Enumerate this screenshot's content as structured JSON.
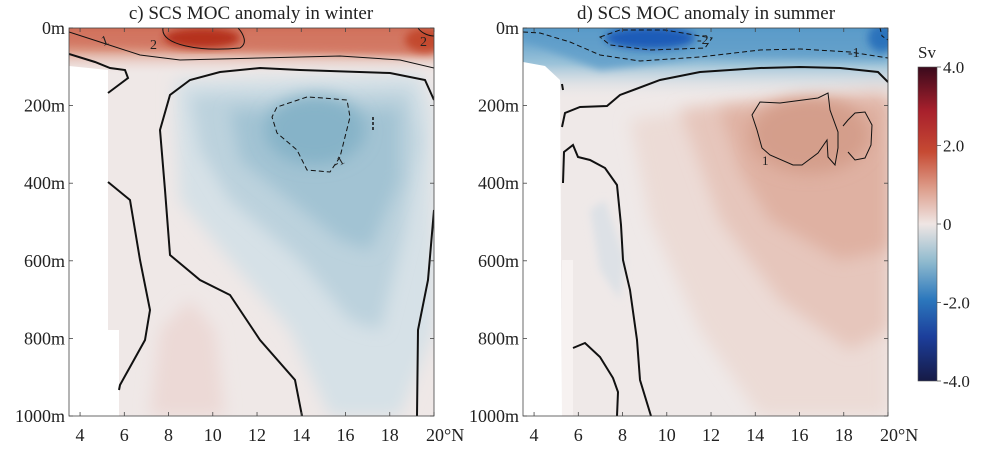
{
  "chart_data": [
    {
      "type": "heatmap",
      "subtype": "filled contour",
      "title": "c) SCS MOC anomaly in winter",
      "xlabel": "",
      "ylabel": "",
      "x_ticks": [
        "4",
        "6",
        "8",
        "10",
        "12",
        "14",
        "16",
        "18",
        "20°N"
      ],
      "x_tick_values": [
        4,
        6,
        8,
        10,
        12,
        14,
        16,
        18,
        20
      ],
      "xlim": [
        3.5,
        20
      ],
      "y_ticks": [
        "0m",
        "200m",
        "400m",
        "600m",
        "800m",
        "1000m"
      ],
      "y_tick_values": [
        0,
        200,
        400,
        600,
        800,
        1000
      ],
      "ylim": [
        1000,
        0
      ],
      "contour_labels": [
        "1",
        "2",
        "2",
        "-1"
      ],
      "features": [
        {
          "kind": "max",
          "lat": 9,
          "depth": 30,
          "value": 2.5
        },
        {
          "kind": "min",
          "lat": 14.5,
          "depth": 260,
          "value": -1.2
        }
      ]
    },
    {
      "type": "heatmap",
      "subtype": "filled contour",
      "title": "d) SCS MOC anomaly in summer",
      "xlabel": "",
      "ylabel": "",
      "x_ticks": [
        "4",
        "6",
        "8",
        "10",
        "12",
        "14",
        "16",
        "18",
        "20°N"
      ],
      "x_tick_values": [
        4,
        6,
        8,
        10,
        12,
        14,
        16,
        18,
        20
      ],
      "xlim": [
        3.5,
        20
      ],
      "y_ticks": [
        "0m",
        "200m",
        "400m",
        "600m",
        "800m",
        "1000m"
      ],
      "y_tick_values": [
        0,
        200,
        400,
        600,
        800,
        1000
      ],
      "ylim": [
        1000,
        0
      ],
      "contour_labels": [
        "-2",
        "-1",
        "1"
      ],
      "features": [
        {
          "kind": "min",
          "lat": 9,
          "depth": 30,
          "value": -2.5
        },
        {
          "kind": "max",
          "lat": 16,
          "depth": 260,
          "value": 1.2
        }
      ]
    }
  ],
  "colorbar": {
    "unit": "Sv",
    "ticks": [
      "4.0",
      "2.0",
      "0",
      "-2.0",
      "-4.0"
    ],
    "tick_values": [
      4,
      2,
      0,
      -2,
      -4
    ],
    "range": [
      -4,
      4
    ],
    "colors": [
      "#3a0a1c",
      "#a8202c",
      "#d0704f",
      "#efe6e4",
      "#7fb0c9",
      "#2c78bd",
      "#1c3e9b",
      "#161a45"
    ]
  }
}
